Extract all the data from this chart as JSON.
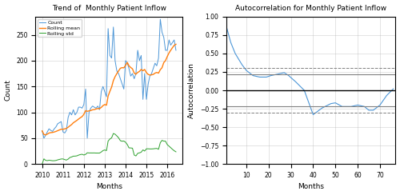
{
  "left_title": "Trend of  Monthly Patient Inflow",
  "right_title": "Autocorrelation for Monthly Patient Inflow",
  "left_xlabel": "Months",
  "left_ylabel": "Count",
  "right_xlabel": "Months",
  "right_ylabel": "Autocorrelation",
  "left_ylim": [
    0,
    285
  ],
  "right_xlim": [
    1,
    77
  ],
  "right_ylim": [
    -1.0,
    1.0
  ],
  "conf_solid": 0.22,
  "conf_dashed": 0.3,
  "line_color_count": "#4C96D7",
  "line_color_rolling_mean": "#FF7F0E",
  "line_color_rolling_std": "#2CA02C",
  "line_color_acf": "#4C96D7",
  "legend_labels": [
    "Count",
    "Rolling mean",
    "Rolling std"
  ],
  "background_color": "#ffffff",
  "grid_color": "#b0b0b0",
  "acf_key_lags": [
    1,
    3,
    5,
    8,
    10,
    13,
    16,
    19,
    21,
    24,
    27,
    29,
    32,
    36,
    40,
    44,
    48,
    50,
    53,
    57,
    60,
    63,
    65,
    67,
    70,
    73,
    76
  ],
  "acf_key_vals": [
    0.87,
    0.65,
    0.5,
    0.35,
    0.27,
    0.2,
    0.18,
    0.18,
    0.2,
    0.22,
    0.24,
    0.2,
    0.12,
    0.0,
    -0.33,
    -0.24,
    -0.18,
    -0.17,
    -0.22,
    -0.22,
    -0.2,
    -0.22,
    -0.27,
    -0.27,
    -0.2,
    -0.07,
    0.02
  ],
  "count_key_months": [
    0,
    1,
    2,
    3,
    4,
    5,
    6,
    7,
    8,
    9,
    10,
    11,
    12,
    13,
    14,
    15,
    16,
    17,
    18,
    19,
    20,
    21,
    22,
    23,
    24,
    25,
    26,
    27,
    28,
    29,
    30,
    31,
    32,
    33,
    34,
    35,
    36,
    37,
    38,
    39,
    40,
    41,
    42,
    43,
    44,
    45,
    46,
    47,
    48,
    49,
    50,
    51,
    52,
    53,
    54,
    55,
    56,
    57,
    58,
    59,
    60,
    61,
    62,
    63,
    64,
    65,
    66,
    67,
    68,
    69,
    70,
    71,
    72,
    73,
    74,
    75,
    76,
    77
  ],
  "count_key_vals": [
    64,
    50,
    55,
    62,
    68,
    65,
    63,
    68,
    72,
    78,
    80,
    82,
    62,
    60,
    65,
    90,
    100,
    95,
    105,
    95,
    100,
    110,
    110,
    108,
    115,
    145,
    50,
    100,
    108,
    112,
    110,
    108,
    112,
    105,
    140,
    150,
    140,
    130,
    262,
    210,
    205,
    265,
    200,
    180,
    175,
    165,
    155,
    145,
    200,
    195,
    185,
    170,
    175,
    165,
    175,
    220,
    200,
    210,
    125,
    175,
    125,
    155,
    170,
    175,
    185,
    195,
    190,
    205,
    280,
    255,
    245,
    220,
    220,
    240,
    230,
    235,
    240,
    220
  ]
}
